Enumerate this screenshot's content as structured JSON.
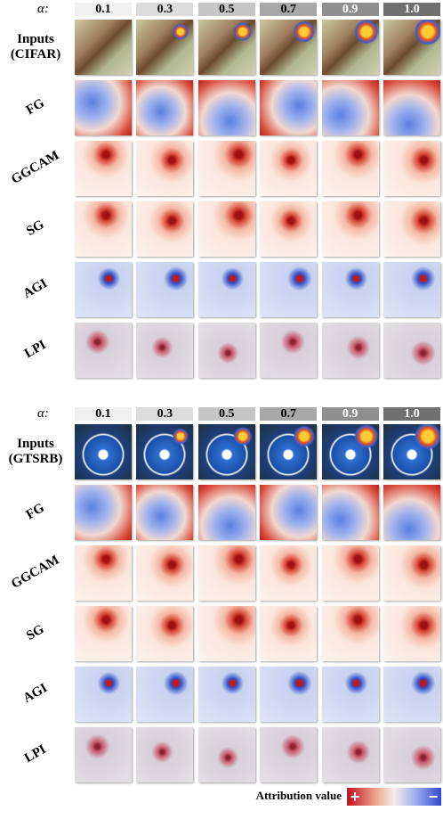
{
  "panels": [
    {
      "alpha_label": "α:",
      "alphas": [
        "0.1",
        "0.3",
        "0.5",
        "0.7",
        "0.9",
        "1.0"
      ],
      "rows": [
        "Inputs\n(CIFAR)",
        "FG",
        "GGCAM",
        "SG",
        "AGI",
        "LPI"
      ]
    },
    {
      "alpha_label": "α:",
      "alphas": [
        "0.1",
        "0.3",
        "0.5",
        "0.7",
        "0.9",
        "1.0"
      ],
      "rows": [
        "Inputs\n(GTSRB)",
        "FG",
        "GGCAM",
        "SG",
        "AGI",
        "LPI"
      ]
    }
  ],
  "legend": {
    "title": "Attribution value",
    "positive": "+",
    "negative": "−"
  }
}
